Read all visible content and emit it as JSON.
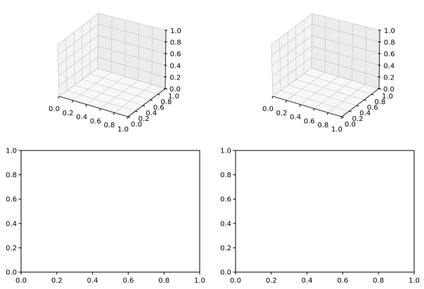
{
  "colors": {
    "background": "#ffffff",
    "axis": "#000000",
    "pane_left": "#f3f3f3",
    "pane_back": "#ececec",
    "pane_floor": "#f7f7f7",
    "grid": "#c4c4c4"
  },
  "chart_data": [
    {
      "type": "scatter",
      "projection": "3d",
      "empty": true,
      "xlim": [
        0.0,
        1.0
      ],
      "ylim": [
        0.0,
        1.0
      ],
      "zlim": [
        0.0,
        1.0
      ],
      "xticks": [
        "0.0",
        "0.2",
        "0.4",
        "0.6",
        "0.8",
        "1.0"
      ],
      "yticks": [
        "0.0",
        "0.2",
        "0.4",
        "0.6",
        "0.8",
        "1.0"
      ],
      "zticks": [
        "0.0",
        "0.2",
        "0.4",
        "0.6",
        "0.8",
        "1.0"
      ],
      "grid": true
    },
    {
      "type": "scatter",
      "projection": "3d",
      "empty": true,
      "xlim": [
        0.0,
        1.0
      ],
      "ylim": [
        0.0,
        1.0
      ],
      "zlim": [
        0.0,
        1.0
      ],
      "xticks": [
        "0.0",
        "0.2",
        "0.4",
        "0.6",
        "0.8",
        "1.0"
      ],
      "yticks": [
        "0.0",
        "0.2",
        "0.4",
        "0.6",
        "0.8",
        "1.0"
      ],
      "zticks": [
        "0.0",
        "0.2",
        "0.4",
        "0.6",
        "0.8",
        "1.0"
      ],
      "grid": true
    },
    {
      "type": "line",
      "empty": true,
      "xlim": [
        0.0,
        1.0
      ],
      "ylim": [
        0.0,
        1.0
      ],
      "xticks": [
        "0.0",
        "0.2",
        "0.4",
        "0.6",
        "0.8",
        "1.0"
      ],
      "yticks": [
        "0.0",
        "0.2",
        "0.4",
        "0.6",
        "0.8",
        "1.0"
      ],
      "grid": false
    },
    {
      "type": "line",
      "empty": true,
      "xlim": [
        0.0,
        1.0
      ],
      "ylim": [
        0.0,
        1.0
      ],
      "xticks": [
        "0.0",
        "0.2",
        "0.4",
        "0.6",
        "0.8",
        "1.0"
      ],
      "yticks": [
        "0.0",
        "0.2",
        "0.4",
        "0.6",
        "0.8",
        "1.0"
      ],
      "grid": false
    }
  ]
}
